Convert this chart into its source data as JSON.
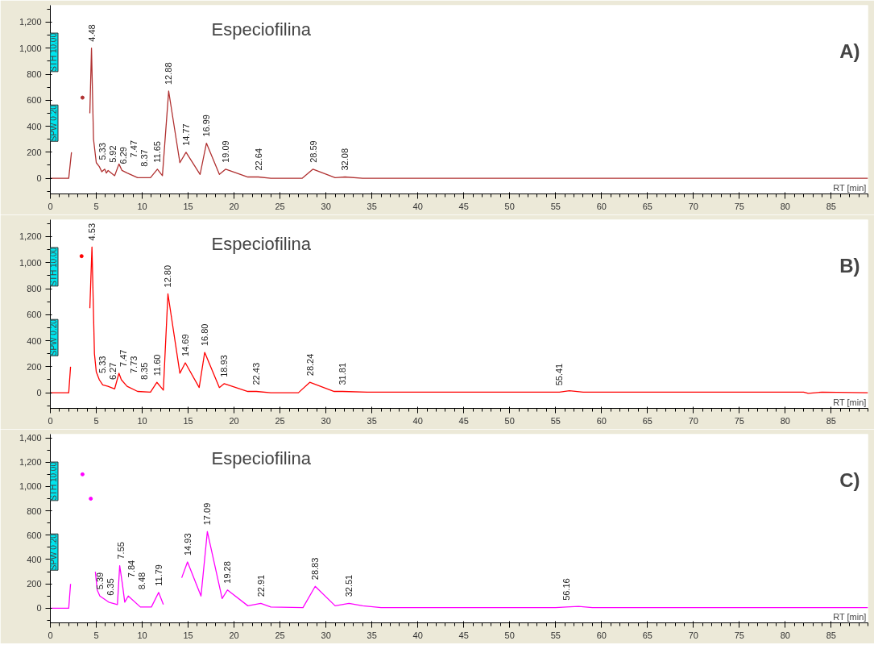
{
  "chart_data": [
    {
      "type": "line",
      "title": "A)",
      "xlabel": "RT [min]",
      "color": "#b03030",
      "x": [
        0,
        2.0,
        2.3,
        2.6,
        3.3,
        3.5,
        3.7,
        4.2,
        4.3,
        4.48,
        4.7,
        5.0,
        5.33,
        5.6,
        5.92,
        6.1,
        6.29,
        7.0,
        7.47,
        7.8,
        8.37,
        9.5,
        10.9,
        11.65,
        12.2,
        12.88,
        14.1,
        14.77,
        16.3,
        16.99,
        18.4,
        19.09,
        21.5,
        22.64,
        24,
        27.4,
        28.59,
        31,
        32.08,
        34,
        89
      ],
      "values": [
        0,
        0,
        200,
        null,
        null,
        620,
        null,
        null,
        500,
        1000,
        300,
        120,
        90,
        50,
        70,
        40,
        60,
        20,
        110,
        60,
        40,
        5,
        5,
        70,
        20,
        670,
        120,
        200,
        30,
        270,
        30,
        70,
        10,
        10,
        0,
        0,
        70,
        5,
        10,
        0,
        0
      ],
      "xlim": [
        0,
        89
      ],
      "ylim": [
        -120,
        1330
      ],
      "xticks": [
        0,
        5,
        10,
        15,
        20,
        25,
        30,
        35,
        40,
        45,
        50,
        55,
        60,
        65,
        70,
        75,
        80,
        85
      ],
      "yticks": [
        0,
        200,
        400,
        600,
        800,
        {
          "value": 1000,
          "label": "1,000"
        },
        {
          "value": 1200,
          "label": "1,200"
        }
      ],
      "annotations": [
        "Especiofilina",
        "STH 10.00",
        "SPW 0.20",
        {
          "text": "4.48",
          "x": 4.48,
          "y": 1000
        },
        {
          "text": "5.33",
          "x": 5.33,
          "y": 90
        },
        {
          "text": "5.92",
          "x": 5.92,
          "y": 70
        },
        {
          "text": "6.29",
          "x": 6.29,
          "y": 60
        },
        {
          "text": "7.47",
          "x": 7.47,
          "y": 110
        },
        {
          "text": "8.37",
          "x": 8.37,
          "y": 40
        },
        {
          "text": "11.65",
          "x": 11.65,
          "y": 70
        },
        {
          "text": "12.88",
          "x": 12.88,
          "y": 670
        },
        {
          "text": "14.77",
          "x": 14.77,
          "y": 200
        },
        {
          "text": "16.99",
          "x": 16.99,
          "y": 270
        },
        {
          "text": "19.09",
          "x": 19.09,
          "y": 70
        },
        {
          "text": "22.64",
          "x": 22.64,
          "y": 10
        },
        {
          "text": "28.59",
          "x": 28.59,
          "y": 70
        },
        {
          "text": "32.08",
          "x": 32.08,
          "y": 10
        }
      ]
    },
    {
      "type": "line",
      "title": "B)",
      "xlabel": "RT [min]",
      "color": "#ff0000",
      "x": [
        0,
        2.0,
        2.2,
        2.5,
        3.3,
        3.4,
        3.7,
        4.2,
        4.3,
        4.53,
        4.8,
        5.0,
        5.33,
        5.7,
        6.27,
        7.0,
        7.47,
        7.73,
        8.35,
        9.5,
        10.9,
        11.6,
        12.3,
        12.8,
        14.1,
        14.69,
        16.2,
        16.8,
        18.4,
        18.93,
        21.5,
        22.43,
        24,
        27,
        28.24,
        30.9,
        31.81,
        34.5,
        55.41,
        56.5,
        58,
        82,
        82.5,
        84,
        89
      ],
      "values": [
        0,
        0,
        200,
        null,
        null,
        1050,
        null,
        null,
        650,
        1120,
        300,
        160,
        100,
        60,
        50,
        30,
        150,
        100,
        50,
        10,
        5,
        80,
        20,
        760,
        150,
        230,
        40,
        310,
        40,
        70,
        10,
        10,
        0,
        0,
        80,
        10,
        10,
        5,
        5,
        15,
        5,
        5,
        -5,
        5,
        0
      ],
      "xlim": [
        0,
        89
      ],
      "ylim": [
        -120,
        1330
      ],
      "xticks": [
        0,
        5,
        10,
        15,
        20,
        25,
        30,
        35,
        40,
        45,
        50,
        55,
        60,
        65,
        70,
        75,
        80,
        85
      ],
      "yticks": [
        0,
        200,
        400,
        600,
        800,
        {
          "value": 1000,
          "label": "1,000"
        },
        {
          "value": 1200,
          "label": "1,200"
        }
      ],
      "annotations": [
        "Especiofilina",
        "STH 10.00",
        "SPW 0.20",
        {
          "text": "4.53",
          "x": 4.53,
          "y": 1120
        },
        {
          "text": "5.33",
          "x": 5.33,
          "y": 100
        },
        {
          "text": "6.27",
          "x": 6.27,
          "y": 50
        },
        {
          "text": "7.47",
          "x": 7.47,
          "y": 150
        },
        {
          "text": "7.73",
          "x": 7.73,
          "y": 100
        },
        {
          "text": "8.35",
          "x": 8.35,
          "y": 50
        },
        {
          "text": "11.60",
          "x": 11.6,
          "y": 80
        },
        {
          "text": "12.80",
          "x": 12.8,
          "y": 760
        },
        {
          "text": "14.69",
          "x": 14.69,
          "y": 230
        },
        {
          "text": "16.80",
          "x": 16.8,
          "y": 310
        },
        {
          "text": "18.93",
          "x": 18.93,
          "y": 70
        },
        {
          "text": "22.43",
          "x": 22.43,
          "y": 10
        },
        {
          "text": "28.24",
          "x": 28.24,
          "y": 80
        },
        {
          "text": "31.81",
          "x": 31.81,
          "y": 10
        },
        {
          "text": "55.41",
          "x": 55.41,
          "y": 5
        }
      ]
    },
    {
      "type": "line",
      "title": "C)",
      "xlabel": "RT [min]",
      "color": "#ff00ff",
      "x": [
        0,
        2.0,
        2.2,
        2.4,
        3.3,
        3.5,
        4.2,
        4.4,
        4.6,
        4.9,
        5.1,
        5.39,
        6.35,
        7.3,
        7.55,
        7.84,
        8.1,
        8.48,
        9.8,
        11.0,
        11.79,
        12.3,
        12.9,
        13.3,
        14.3,
        14.93,
        16.4,
        17.09,
        18.7,
        19.28,
        21.5,
        22.91,
        24,
        27.5,
        28.83,
        31,
        32.51,
        34,
        36,
        55,
        56.16,
        57.5,
        59,
        89
      ],
      "values": [
        0,
        0,
        200,
        null,
        null,
        1100,
        null,
        900,
        null,
        300,
        150,
        100,
        50,
        30,
        350,
        200,
        50,
        100,
        10,
        10,
        130,
        30,
        null,
        null,
        250,
        380,
        100,
        630,
        80,
        150,
        20,
        40,
        10,
        5,
        180,
        20,
        40,
        20,
        5,
        5,
        10,
        15,
        5,
        5
      ],
      "xlim": [
        0,
        89
      ],
      "ylim": [
        -120,
        1430
      ],
      "xticks": [
        0,
        5,
        10,
        15,
        20,
        25,
        30,
        35,
        40,
        45,
        50,
        55,
        60,
        65,
        70,
        75,
        80,
        85
      ],
      "yticks": [
        0,
        200,
        400,
        600,
        800,
        {
          "value": 1000,
          "label": "1,000"
        },
        {
          "value": 1200,
          "label": "1,200"
        },
        {
          "value": 1400,
          "label": "1,400"
        }
      ],
      "annotations": [
        "Especiofilina",
        "STH 10.00",
        "SPW 0.20",
        {
          "text": "5.39",
          "x": 5.39,
          "y": 100
        },
        {
          "text": "6.35",
          "x": 6.35,
          "y": 50
        },
        {
          "text": "7.55",
          "x": 7.55,
          "y": 350
        },
        {
          "text": "7.84",
          "x": 7.84,
          "y": 200
        },
        {
          "text": "8.48",
          "x": 8.48,
          "y": 100
        },
        {
          "text": "11.79",
          "x": 11.79,
          "y": 130
        },
        {
          "text": "14.93",
          "x": 14.93,
          "y": 380
        },
        {
          "text": "17.09",
          "x": 17.09,
          "y": 630
        },
        {
          "text": "19.28",
          "x": 19.28,
          "y": 150
        },
        {
          "text": "22.91",
          "x": 22.91,
          "y": 40
        },
        {
          "text": "28.83",
          "x": 28.83,
          "y": 180
        },
        {
          "text": "32.51",
          "x": 32.51,
          "y": 40
        },
        {
          "text": "56.16",
          "x": 56.16,
          "y": 10
        }
      ]
    }
  ]
}
